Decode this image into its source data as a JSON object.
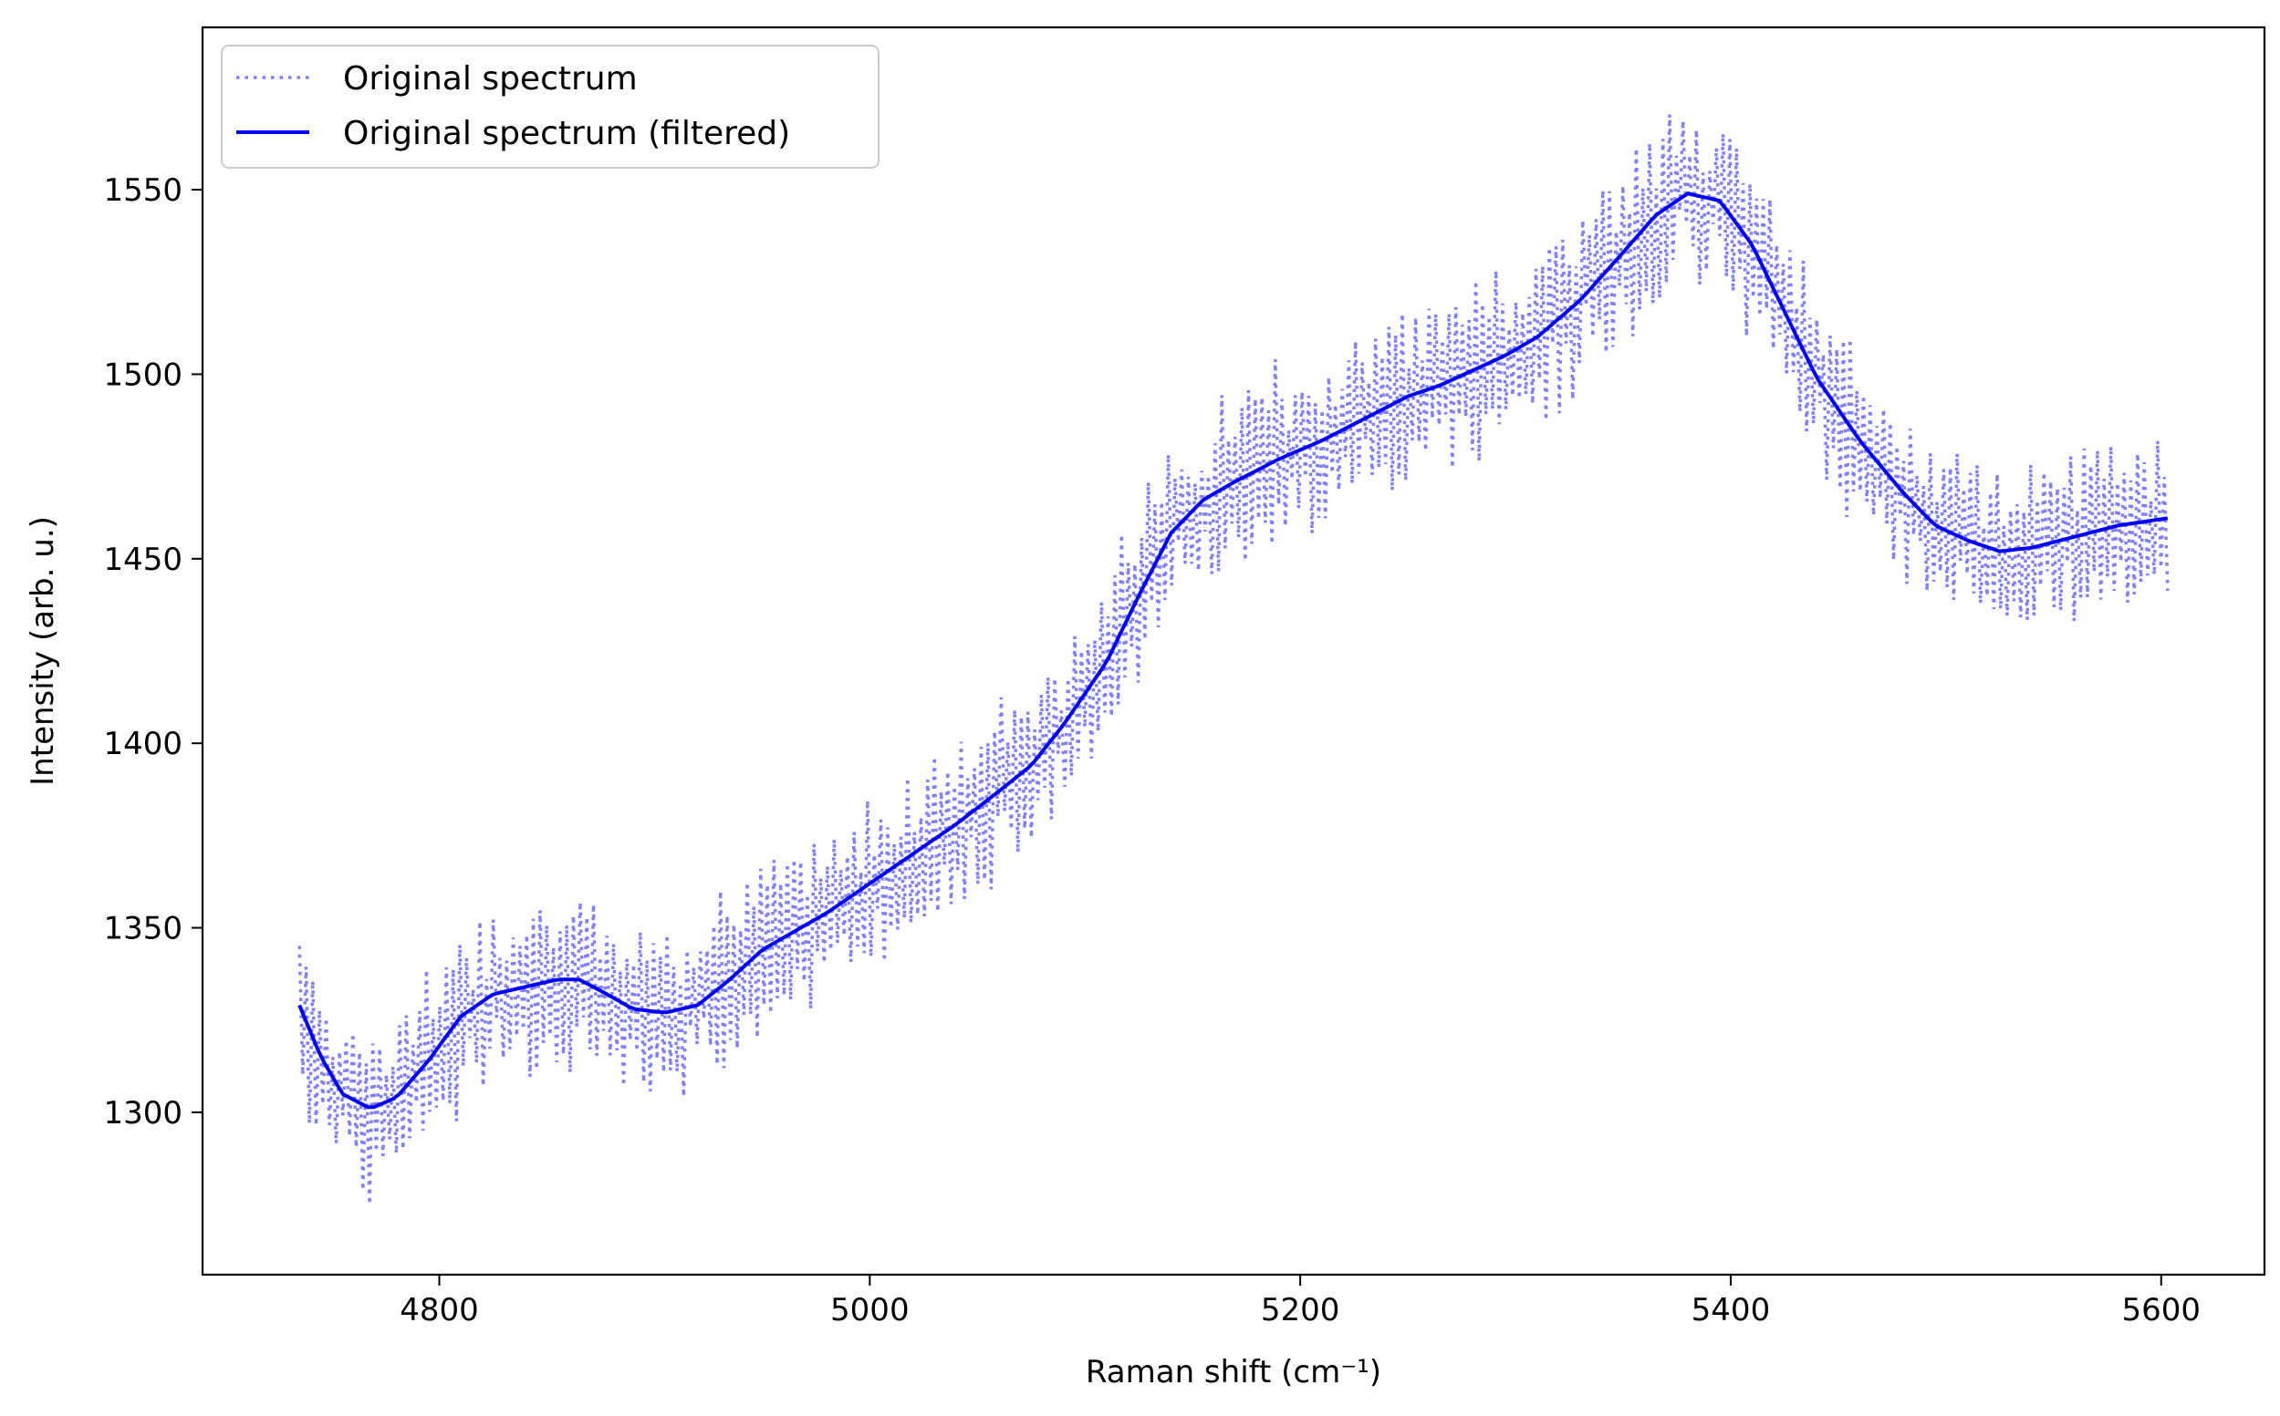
{
  "chart_data": {
    "type": "line",
    "xlabel": "Raman shift (cm⁻¹)",
    "ylabel": "Intensity (arb. u.)",
    "xlim": [
      4690,
      5648
    ],
    "ylim": [
      1256,
      1594
    ],
    "xticks": [
      4800,
      5000,
      5200,
      5400,
      5600
    ],
    "yticks": [
      1300,
      1350,
      1400,
      1450,
      1500,
      1550
    ],
    "grid": false,
    "legend_position": "upper left",
    "series": [
      {
        "name": "Original spectrum",
        "style": "dotted",
        "color": "#7f7fff",
        "x_range": [
          4735,
          5603
        ],
        "points": 560,
        "noise_amplitude": 22
      },
      {
        "name": "Original spectrum (filtered)",
        "style": "solid",
        "color": "#0000ff",
        "x": [
          4735,
          4745,
          4755,
          4768,
          4780,
          4795,
          4810,
          4825,
          4840,
          4855,
          4865,
          4878,
          4890,
          4905,
          4920,
          4935,
          4950,
          4965,
          4980,
          5000,
          5020,
          5040,
          5060,
          5075,
          5090,
          5110,
          5125,
          5140,
          5155,
          5170,
          5190,
          5210,
          5230,
          5250,
          5265,
          5280,
          5295,
          5310,
          5330,
          5350,
          5365,
          5380,
          5395,
          5410,
          5425,
          5440,
          5460,
          5480,
          5495,
          5510,
          5525,
          5540,
          5560,
          5580,
          5603
        ],
        "y": [
          1329,
          1315,
          1305,
          1301,
          1304,
          1314,
          1326,
          1332,
          1334,
          1336,
          1336,
          1332,
          1328,
          1327,
          1329,
          1336,
          1344,
          1349,
          1354,
          1362,
          1370,
          1378,
          1387,
          1394,
          1405,
          1422,
          1440,
          1457,
          1466,
          1471,
          1477,
          1482,
          1488,
          1494,
          1497,
          1501,
          1505,
          1510,
          1520,
          1533,
          1543,
          1549,
          1547,
          1535,
          1517,
          1499,
          1482,
          1468,
          1459,
          1455,
          1452,
          1453,
          1456,
          1459,
          1461
        ]
      }
    ]
  }
}
